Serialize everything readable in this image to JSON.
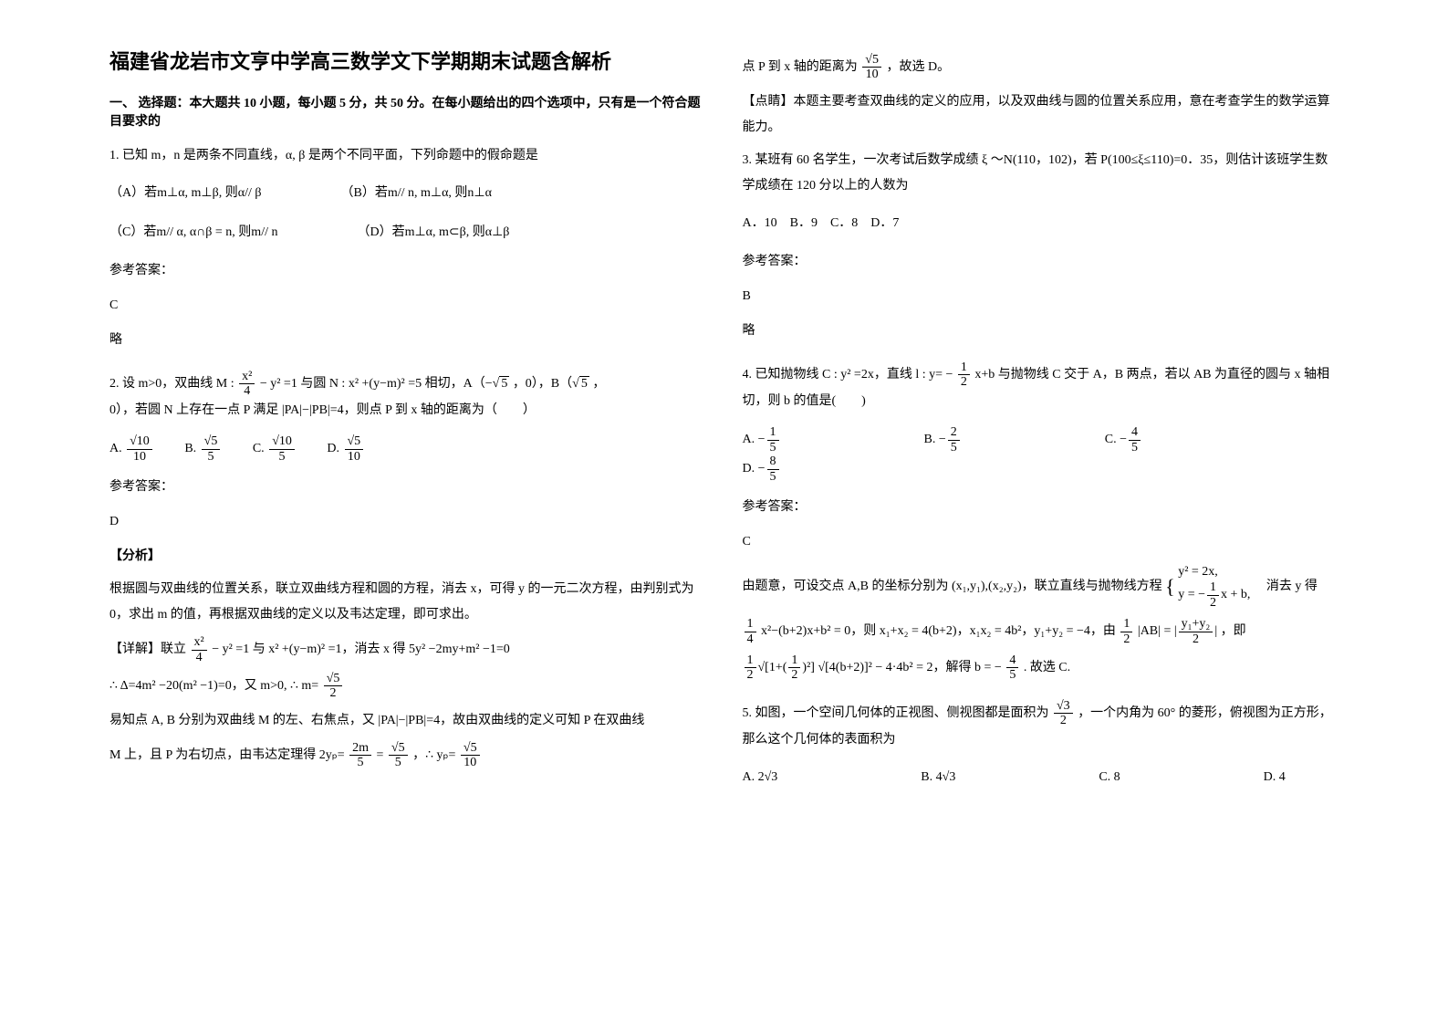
{
  "title": "福建省龙岩市文亨中学高三数学文下学期期末试题含解析",
  "section_heading": "一、 选择题：本大题共 10 小题，每小题 5 分，共 50 分。在每小题给出的四个选项中，只有是一个符合题目要求的",
  "q1": {
    "stem": "1. 已知 m，n 是两条不同直线，α, β 是两个不同平面，下列命题中的假命题是",
    "optA": "（A）若m⊥α, m⊥β, 则α// β",
    "optB": "（B）若m// n, m⊥α, 则n⊥α",
    "optC": "（C）若m// α, α∩β = n, 则m// n",
    "optD": "（D）若m⊥α, m⊂β, 则α⊥β",
    "ans_label": "参考答案：",
    "ans": "C",
    "extra": "略"
  },
  "q2": {
    "stem_pre": "2. 设 m>0，双曲线 M : ",
    "stem_mid1": " − y² =1 与圆 N : x² +(y−m)² =5 相切，A（−",
    "stem_mid2": "，0），B（",
    "stem_mid3": "，",
    "stem_post": "0），若圆 N 上存在一点 P 满足 |PA|−|PB|=4，则点 P 到 x 轴的距离为（　　）",
    "optA_label": "A.",
    "optB_label": "B.",
    "optC_label": "C.",
    "optD_label": "D.",
    "optA_num": "√10",
    "optA_den": "10",
    "optB_num": "√5",
    "optB_den": "5",
    "optC_num": "√10",
    "optC_den": "5",
    "optD_num": "√5",
    "optD_den": "10",
    "ans_label": "参考答案：",
    "ans": "D",
    "analysis_label": "【分析】",
    "analysis1": "根据圆与双曲线的位置关系，联立双曲线方程和圆的方程，消去 x，可得 y 的一元二次方程，由判别式为 0，求出 m 的值，再根据双曲线的定义以及韦达定理，即可求出。",
    "detail_label": "【详解】联立 ",
    "detail_mid1": " − y² =1 与 x² +(y−m)² =1，消去 x 得 5y² −2my+m² −1=0",
    "detail_line2_pre": "∴ Δ=4m² −20(m² −1)=0，又 m>0, ∴ m=",
    "detail_line3": "易知点 A, B 分别为双曲线 M 的左、右焦点，又 |PA|−|PB|=4，故由双曲线的定义可知 P 在双曲线",
    "detail_line4_pre": "M 上，且 P 为右切点，由韦达定理得 2yₚ=",
    "detail_line4_mid": "=",
    "detail_line4_end": "，∴ yₚ=",
    "right_line1_pre": "点 P 到 x 轴的距离为 ",
    "right_line1_post": " ，故选 D。",
    "point_label": "【点睛】本题主要考查双曲线的定义的应用，以及双曲线与圆的位置关系应用，意在考查学生的数学运算能力。"
  },
  "q3": {
    "stem": "3. 某班有 60 名学生，一次考试后数学成绩 ξ ～N(110，102)，若 P(100≤ξ≤110)=0．35，则估计该班学生数学成绩在 120 分以上的人数为",
    "opts": "A．10　B．9　C．8　D．7",
    "ans_label": "参考答案：",
    "ans": "B",
    "extra": "略"
  },
  "q4": {
    "stem_pre": "4. 已知抛物线 C : y² =2x，直线 l : y= −",
    "stem_mid": "x+b 与抛物线 C 交于 A，B 两点，若以 AB 为直径的圆与 x 轴相切，则 b 的值是(　　)",
    "optA_label": "A.",
    "optA_num": "1",
    "optA_den": "5",
    "optB_label": "B.",
    "optB_num": "2",
    "optB_den": "5",
    "optC_label": "C.",
    "optC_num": "4",
    "optC_den": "5",
    "optD_label": "D.",
    "optD_num": "8",
    "optD_den": "5",
    "ans_label": "参考答案：",
    "ans": "C",
    "sol_pre": "由题意，可设交点 A,B 的坐标分别为 (x₁,y₁),(x₂,y₂)，联立直线与抛物线方程",
    "sol_brace1": "y² = 2x,",
    "sol_brace2_pre": "y = −",
    "sol_brace2_post": "x + b,",
    "sol_post": "　消去 y 得",
    "sol_line2_pre": "",
    "sol_line2": "x²−(b+2)x+b² = 0，则 x₁+x₂ = 4(b+2)，x₁x₂ = 4b²，y₁+y₂ = −4，由 ",
    "sol_line2_mid": "|AB| = ",
    "sol_line2_end": "，即",
    "sol_ab_num": "y₁+y₂",
    "sol_ab_den": "2",
    "sol_line3_pre": "",
    "sol_line3": "√[4(b+2)]² − 4·4b² = 2，解得 b = −",
    "sol_line3_end": ". 故选 C.",
    "sol_b_num": "4",
    "sol_b_den": "5"
  },
  "q5": {
    "stem_pre": "5. 如图，一个空间几何体的正视图、侧视图都是面积为 ",
    "stem_mid": " ，一个内角为 60° 的菱形，俯视图为正方形，那么这个几何体的表面积为",
    "optA": "A. 2√3",
    "optB": "B. 4√3",
    "optC": "C. 8",
    "optD": "D. 4"
  },
  "fracs": {
    "x2_4_num": "x²",
    "x2_4_den": "4",
    "sqrt5": "5",
    "sqrt5_2_num": "√5",
    "sqrt5_2_den": "2",
    "m2_5_num": "2m",
    "m2_5_den": "5",
    "s5_5_num": "√5",
    "s5_5_den": "5",
    "s5_10_num": "√5",
    "s5_10_den": "10",
    "half_num": "1",
    "half_den": "2",
    "quarter_num": "1",
    "quarter_den": "4",
    "s3_2_num": "√3",
    "s3_2_den": "2"
  }
}
